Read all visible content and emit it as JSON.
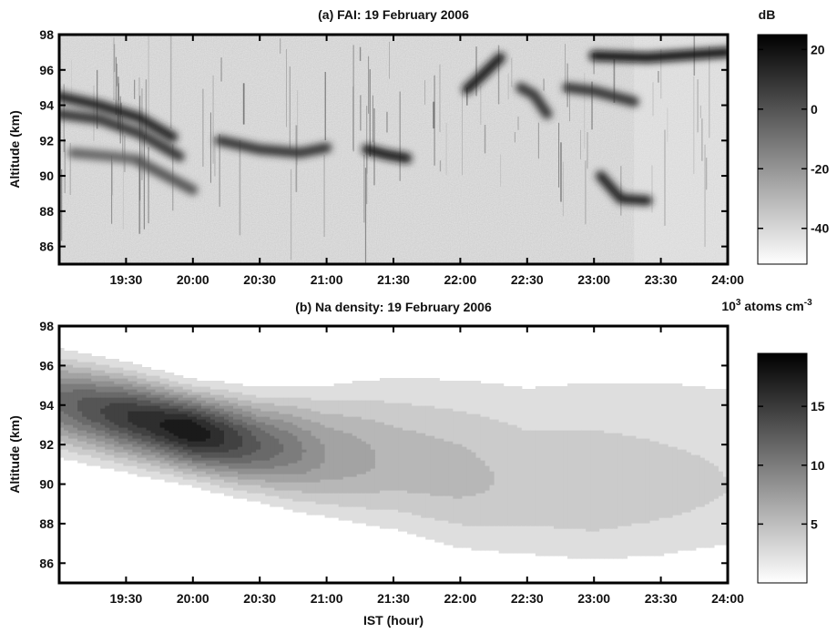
{
  "figure": {
    "xlabel": "IST (hour)"
  },
  "chart_data": [
    {
      "type": "heatmap",
      "title": "(a) FAI: 19 February 2006",
      "ylabel": "Altitude (km)",
      "xlim": [
        19.0,
        24.0
      ],
      "ylim": [
        85,
        98
      ],
      "xticks": [
        19.5,
        20.0,
        20.5,
        21.0,
        21.5,
        22.0,
        22.5,
        23.0,
        23.5,
        24.0
      ],
      "xtick_labels": [
        "19:30",
        "20:00",
        "20:30",
        "21:00",
        "21:30",
        "22:00",
        "22:30",
        "23:00",
        "23:30",
        "24:00"
      ],
      "yticks": [
        86,
        88,
        90,
        92,
        94,
        96,
        98
      ],
      "ytick_labels": [
        "86",
        "88",
        "90",
        "92",
        "94",
        "96",
        "98"
      ],
      "colorbar": {
        "title": "dB",
        "range": [
          -52,
          25
        ],
        "ticks": [
          20,
          0,
          -20,
          -40
        ],
        "tick_labels": [
          "20",
          "0",
          "-20",
          "-40"
        ],
        "low_color": "#ffffff",
        "high_color": "#000000"
      },
      "echo_layers": [
        {
          "t": [
            19.0,
            19.3,
            19.6,
            19.85
          ],
          "alt": [
            94.5,
            94.0,
            93.3,
            92.2
          ],
          "dB": 15
        },
        {
          "t": [
            19.0,
            19.3,
            19.6,
            19.9
          ],
          "alt": [
            93.5,
            93.2,
            92.4,
            91.1
          ],
          "dB": 10
        },
        {
          "t": [
            19.1,
            19.4,
            19.6
          ],
          "alt": [
            91.3,
            91.1,
            90.9
          ],
          "dB": -5
        },
        {
          "t": [
            19.6,
            19.8,
            20.0
          ],
          "alt": [
            90.8,
            90.0,
            89.2
          ],
          "dB": 0
        },
        {
          "t": [
            20.2,
            20.5,
            20.8,
            21.0
          ],
          "alt": [
            92.0,
            91.5,
            91.3,
            91.6
          ],
          "dB": 10
        },
        {
          "t": [
            21.3,
            21.45,
            21.6
          ],
          "alt": [
            91.5,
            91.2,
            91.0
          ],
          "dB": 18
        },
        {
          "t": [
            22.05,
            22.15,
            22.3
          ],
          "alt": [
            94.9,
            95.6,
            96.7
          ],
          "dB": 18
        },
        {
          "t": [
            22.45,
            22.55,
            22.65
          ],
          "alt": [
            95.0,
            94.6,
            93.5
          ],
          "dB": 10
        },
        {
          "t": [
            22.8,
            23.0,
            23.3
          ],
          "alt": [
            95.0,
            94.8,
            94.2
          ],
          "dB": 10
        },
        {
          "t": [
            23.0,
            23.4,
            24.0
          ],
          "alt": [
            96.8,
            96.7,
            97.0
          ],
          "dB": 22
        },
        {
          "t": [
            23.05,
            23.2,
            23.4
          ],
          "alt": [
            90.0,
            88.7,
            88.6
          ],
          "dB": 15
        }
      ]
    },
    {
      "type": "heatmap",
      "title": "(b) Na density: 19 February 2006",
      "xlabel": "IST (hour)",
      "ylabel": "Altitude (km)",
      "xlim": [
        19.0,
        24.0
      ],
      "ylim": [
        85,
        98
      ],
      "xticks": [
        19.5,
        20.0,
        20.5,
        21.0,
        21.5,
        22.0,
        22.5,
        23.0,
        23.5,
        24.0
      ],
      "xtick_labels": [
        "19:30",
        "20:00",
        "20:30",
        "21:00",
        "21:30",
        "22:00",
        "22:30",
        "23:00",
        "23:30",
        "24:00"
      ],
      "yticks": [
        86,
        88,
        90,
        92,
        94,
        96,
        98
      ],
      "ytick_labels": [
        "86",
        "88",
        "90",
        "92",
        "94",
        "96",
        "98"
      ],
      "colorbar": {
        "title_base": "10",
        "title_exp": "3",
        "title_rest": " atoms cm",
        "title_unit_exp": "-3",
        "range": [
          0,
          19.5
        ],
        "ticks": [
          15,
          10,
          5
        ],
        "tick_labels": [
          "15",
          "10",
          "5"
        ],
        "low_color": "#ffffff",
        "high_color": "#000000"
      },
      "density_peak": {
        "t": [
          19.0,
          19.5,
          20.0,
          20.5,
          21.0,
          21.5,
          22.0,
          22.5,
          23.0,
          23.5,
          24.0
        ],
        "center_alt": [
          94.2,
          93.5,
          92.7,
          92.0,
          91.5,
          91.2,
          90.5,
          89.9,
          89.6,
          89.7,
          89.9
        ],
        "peak": [
          12,
          16,
          19,
          13,
          8.5,
          6.5,
          6,
          5,
          5,
          4.5,
          4
        ],
        "upper_width": [
          1.5,
          1.4,
          1.3,
          1.6,
          2.2,
          3.0,
          3.6,
          4.2,
          4.7,
          5.0,
          5.0
        ],
        "lower_width": [
          1.6,
          1.5,
          1.4,
          1.6,
          2.0,
          2.5,
          2.8,
          2.9,
          2.9,
          3.0,
          3.0
        ]
      }
    }
  ]
}
